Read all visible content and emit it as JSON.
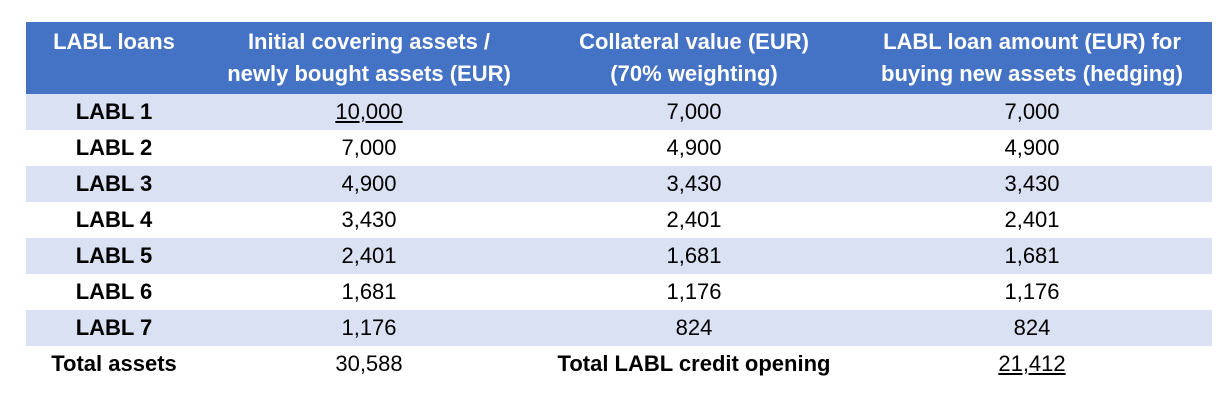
{
  "table": {
    "headers": {
      "col1": [
        "LABL loans"
      ],
      "col2": [
        "Initial covering assets /",
        "newly bought assets (EUR)"
      ],
      "col3": [
        "Collateral value (EUR)",
        "(70% weighting)"
      ],
      "col4": [
        "LABL loan amount (EUR) for",
        "buying new assets (hedging)"
      ]
    },
    "rows": [
      {
        "label": "LABL 1",
        "initial": "10,000",
        "collateral": "7,000",
        "loan": "7,000"
      },
      {
        "label": "LABL 2",
        "initial": "7,000",
        "collateral": "4,900",
        "loan": "4,900"
      },
      {
        "label": "LABL 3",
        "initial": "4,900",
        "collateral": "3,430",
        "loan": "3,430"
      },
      {
        "label": "LABL 4",
        "initial": "3,430",
        "collateral": "2,401",
        "loan": "2,401"
      },
      {
        "label": "LABL 5",
        "initial": "2,401",
        "collateral": "1,681",
        "loan": "1,681"
      },
      {
        "label": "LABL 6",
        "initial": "1,681",
        "collateral": "1,176",
        "loan": "1,176"
      },
      {
        "label": "LABL 7",
        "initial": "1,176",
        "collateral": "824",
        "loan": "824"
      }
    ],
    "total": {
      "assets_label": "Total assets",
      "assets_value": "30,588",
      "credit_label": "Total LABL credit opening",
      "credit_value": "21,412"
    }
  },
  "colors": {
    "header_bg": "#4472c4",
    "band_bg": "#d9e1f2"
  }
}
